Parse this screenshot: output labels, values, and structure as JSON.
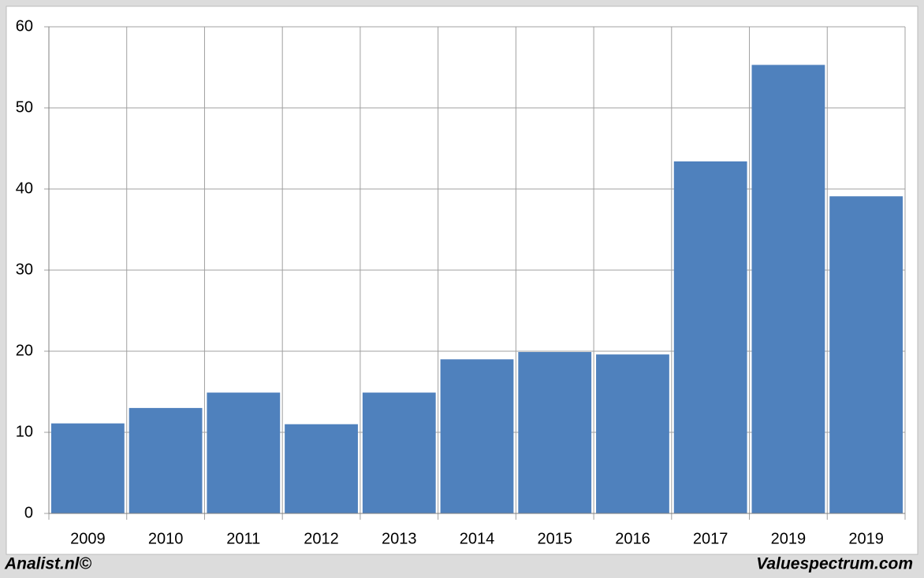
{
  "chart_data": {
    "type": "bar",
    "categories": [
      "2009",
      "2010",
      "2011",
      "2012",
      "2013",
      "2014",
      "2015",
      "2016",
      "2017",
      "2019",
      "2019"
    ],
    "values": [
      11.1,
      13.0,
      14.9,
      11.0,
      14.9,
      19.0,
      19.9,
      19.6,
      43.4,
      55.3,
      39.1
    ],
    "color": "#4f81bd",
    "ylim": [
      0,
      60
    ],
    "yticks": [
      0,
      10,
      20,
      30,
      40,
      50,
      60
    ],
    "grid": true,
    "footer_left": "Analist.nl©",
    "footer_right": "Valuespectrum.com"
  }
}
